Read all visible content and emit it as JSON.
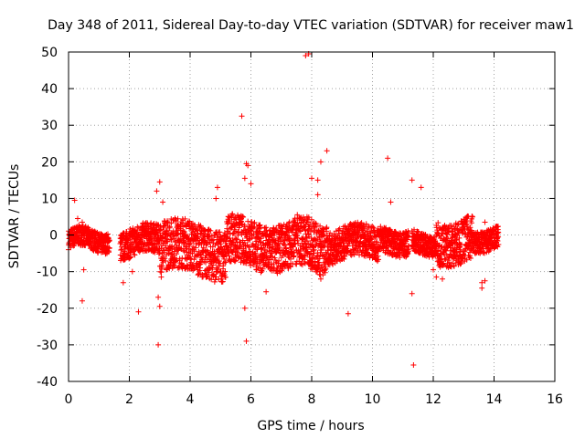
{
  "chart_data": {
    "type": "scatter",
    "title": "Day 348 of 2011, Sidereal Day-to-day VTEC variation (SDTVAR) for receiver maw1",
    "xlabel": "GPS time / hours",
    "ylabel": "SDTVAR / TECUs",
    "xlim": [
      0,
      16
    ],
    "ylim": [
      -40,
      50
    ],
    "xticks": [
      "0",
      "2",
      "4",
      "6",
      "8",
      "10",
      "12",
      "14",
      "16"
    ],
    "yticks": [
      "50",
      "40",
      "30",
      "20",
      "10",
      "0",
      "-10",
      "-20",
      "-30",
      "-40"
    ],
    "grid": true,
    "marker": "+",
    "marker_color": "#ff0000",
    "band_segments": [
      {
        "x0": 0.0,
        "x1": 1.35,
        "lo": -4,
        "hi": 1.5,
        "amp": 1.2,
        "freq": 4.1
      },
      {
        "x0": 1.7,
        "x1": 3.0,
        "lo": -6,
        "hi": 2,
        "amp": 1.5,
        "freq": 3.0
      },
      {
        "x0": 3.0,
        "x1": 5.2,
        "lo": -11,
        "hi": 3,
        "amp": 2.0,
        "freq": 2.2
      },
      {
        "x0": 5.2,
        "x1": 7.5,
        "lo": -9,
        "hi": 4,
        "amp": 1.8,
        "freq": 2.6
      },
      {
        "x0": 7.5,
        "x1": 8.5,
        "lo": -10,
        "hi": 4,
        "amp": 1.8,
        "freq": 3.5
      },
      {
        "x0": 8.5,
        "x1": 10.2,
        "lo": -7,
        "hi": 2,
        "amp": 1.5,
        "freq": 2.8
      },
      {
        "x0": 10.2,
        "x1": 11.2,
        "lo": -5,
        "hi": 2,
        "amp": 1.2,
        "freq": 3.3
      },
      {
        "x0": 11.3,
        "x1": 12.1,
        "lo": -5,
        "hi": 1,
        "amp": 1.2,
        "freq": 3.0
      },
      {
        "x0": 12.1,
        "x1": 13.3,
        "lo": -7,
        "hi": 5,
        "amp": 2.0,
        "freq": 2.4
      },
      {
        "x0": 13.3,
        "x1": 14.15,
        "lo": -4,
        "hi": 2,
        "amp": 1.2,
        "freq": 3.6
      }
    ],
    "outliers": [
      [
        0.2,
        9.5
      ],
      [
        0.3,
        4.5
      ],
      [
        0.45,
        3.5
      ],
      [
        0.5,
        -9.5
      ],
      [
        0.45,
        -18.0
      ],
      [
        1.8,
        -13.0
      ],
      [
        2.1,
        -10.0
      ],
      [
        2.3,
        -21.0
      ],
      [
        2.9,
        12.0
      ],
      [
        3.0,
        14.5
      ],
      [
        3.1,
        9.0
      ],
      [
        2.95,
        -17.0
      ],
      [
        3.0,
        -19.5
      ],
      [
        2.95,
        -30.0
      ],
      [
        3.05,
        -11.5
      ],
      [
        4.9,
        13.0
      ],
      [
        4.85,
        10.0
      ],
      [
        5.7,
        32.5
      ],
      [
        5.85,
        19.5
      ],
      [
        5.9,
        19.0
      ],
      [
        5.8,
        15.5
      ],
      [
        6.0,
        14.0
      ],
      [
        5.8,
        -20.0
      ],
      [
        5.85,
        -29.0
      ],
      [
        6.5,
        -15.5
      ],
      [
        7.8,
        49.0
      ],
      [
        7.9,
        49.5
      ],
      [
        8.0,
        15.5
      ],
      [
        8.2,
        15.0
      ],
      [
        8.3,
        20.0
      ],
      [
        8.5,
        23.0
      ],
      [
        8.2,
        11.0
      ],
      [
        8.3,
        -12.0
      ],
      [
        9.2,
        -21.5
      ],
      [
        10.5,
        21.0
      ],
      [
        10.6,
        9.0
      ],
      [
        11.3,
        15.0
      ],
      [
        11.6,
        13.0
      ],
      [
        11.3,
        -16.0
      ],
      [
        11.35,
        -35.5
      ],
      [
        12.0,
        -9.5
      ],
      [
        12.1,
        -11.5
      ],
      [
        12.3,
        -12.0
      ],
      [
        13.6,
        -13.0
      ],
      [
        13.6,
        -14.5
      ],
      [
        13.7,
        -12.5
      ],
      [
        13.7,
        3.5
      ]
    ]
  }
}
